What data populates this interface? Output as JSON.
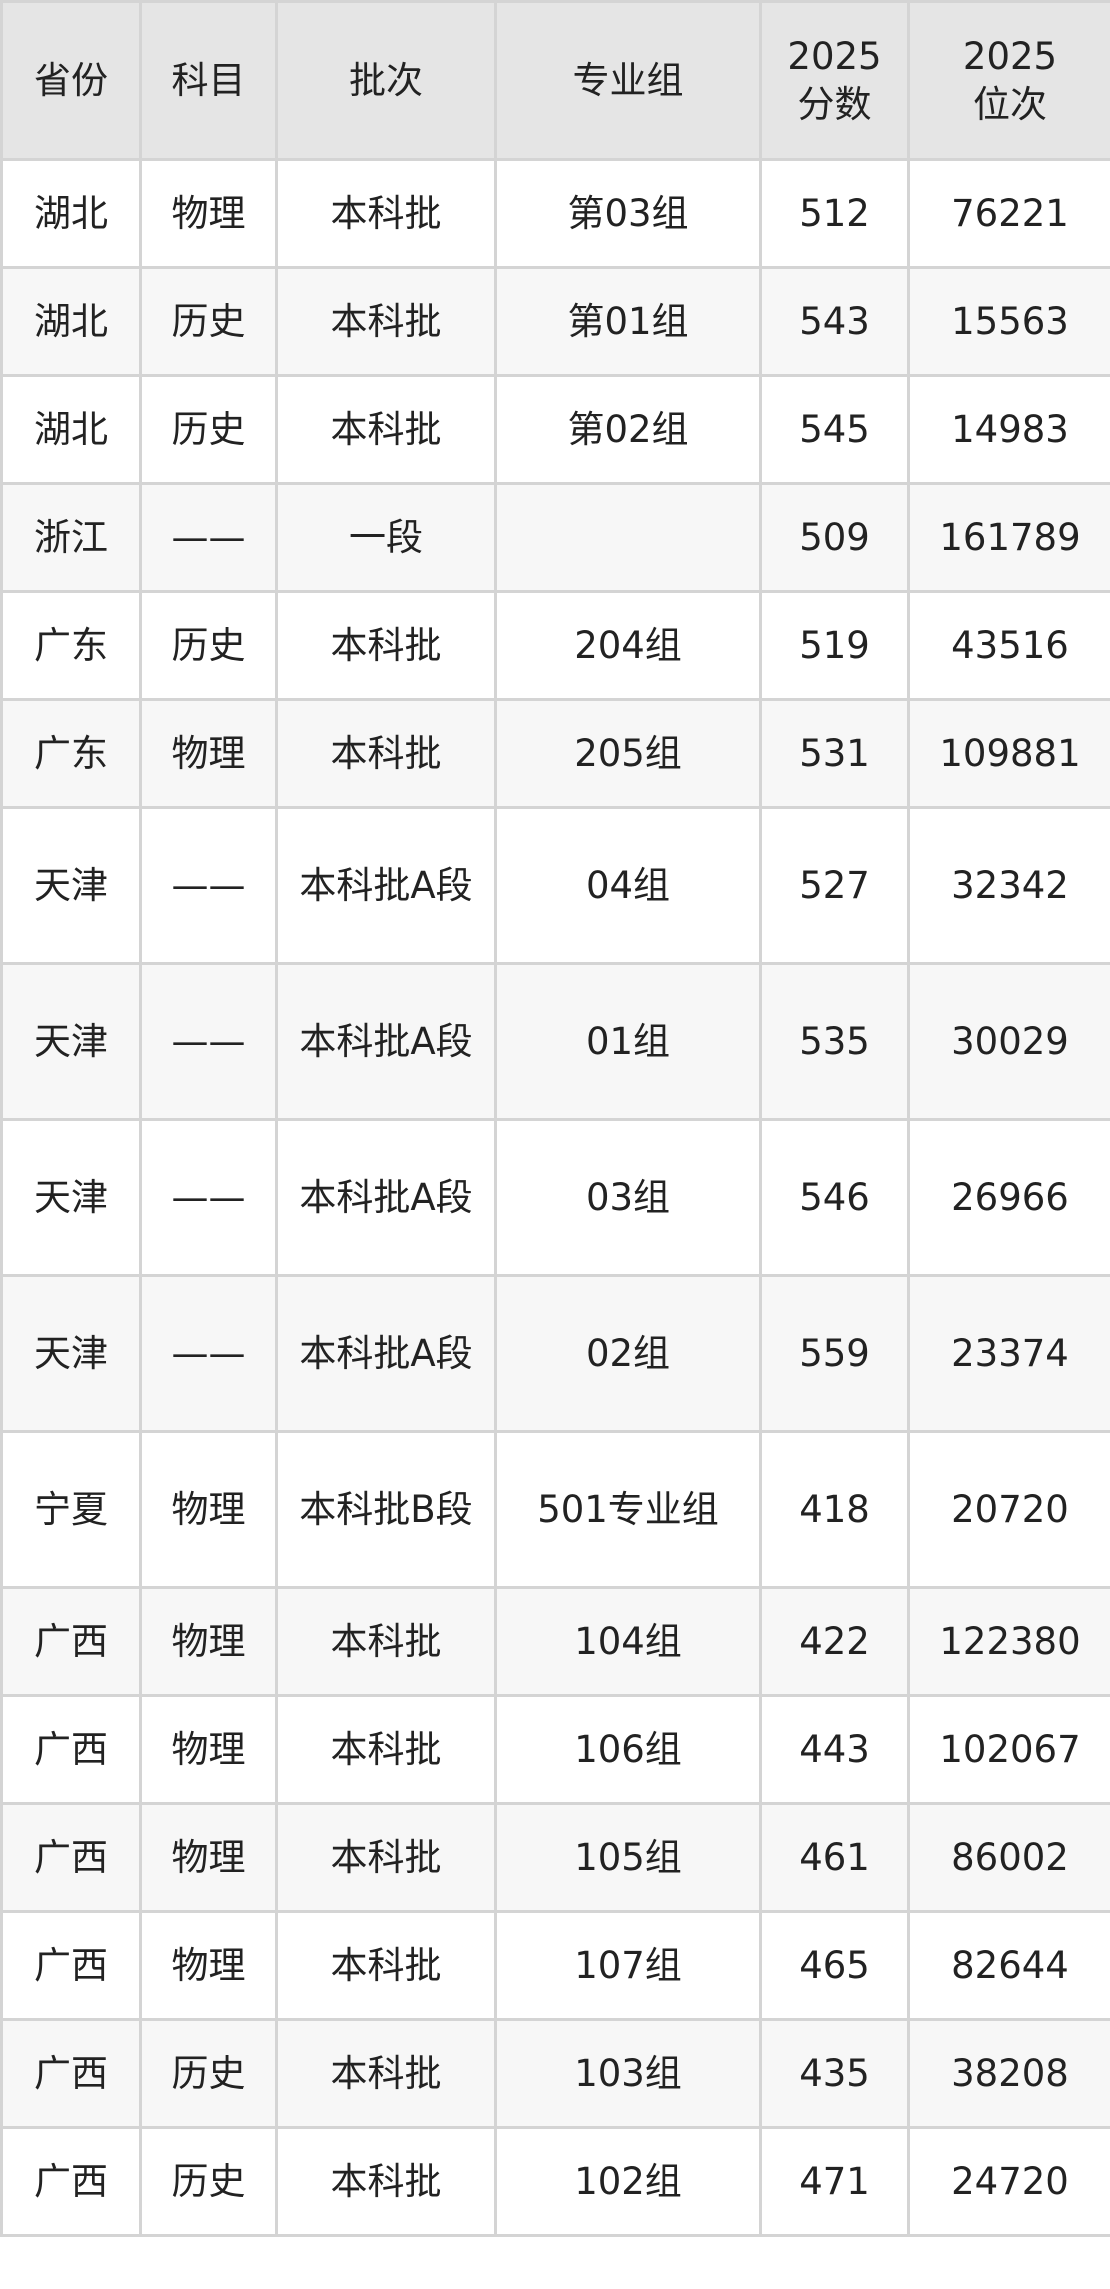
{
  "headers": [
    "省份",
    "科目",
    "批次",
    "专业组",
    "2025\n分数",
    "2025\n位次"
  ],
  "rows": [
    [
      "湖北",
      "物理",
      "本科批",
      "第03组",
      "512",
      "76221"
    ],
    [
      "湖北",
      "历史",
      "本科批",
      "第01组",
      "543",
      "15563"
    ],
    [
      "湖北",
      "历史",
      "本科批",
      "第02组",
      "545",
      "14983"
    ],
    [
      "浙江",
      "——",
      "一段",
      "",
      "509",
      "161789"
    ],
    [
      "广东",
      "历史",
      "本科批",
      "204组",
      "519",
      "43516"
    ],
    [
      "广东",
      "物理",
      "本科批",
      "205组",
      "531",
      "109881"
    ],
    [
      "天津",
      "——",
      "本科批A段",
      "04组",
      "527",
      "32342"
    ],
    [
      "天津",
      "——",
      "本科批A段",
      "01组",
      "535",
      "30029"
    ],
    [
      "天津",
      "——",
      "本科批A段",
      "03组",
      "546",
      "26966"
    ],
    [
      "天津",
      "——",
      "本科批A段",
      "02组",
      "559",
      "23374"
    ],
    [
      "宁夏",
      "物理",
      "本科批B段",
      "501专业组",
      "418",
      "20720"
    ],
    [
      "广西",
      "物理",
      "本科批",
      "104组",
      "422",
      "122380"
    ],
    [
      "广西",
      "物理",
      "本科批",
      "106组",
      "443",
      "102067"
    ],
    [
      "广西",
      "物理",
      "本科批",
      "105组",
      "461",
      "86002"
    ],
    [
      "广西",
      "物理",
      "本科批",
      "107组",
      "465",
      "82644"
    ],
    [
      "广西",
      "历史",
      "本科批",
      "103组",
      "435",
      "38208"
    ],
    [
      "广西",
      "历史",
      "本科批",
      "102组",
      "471",
      "24720"
    ]
  ]
}
